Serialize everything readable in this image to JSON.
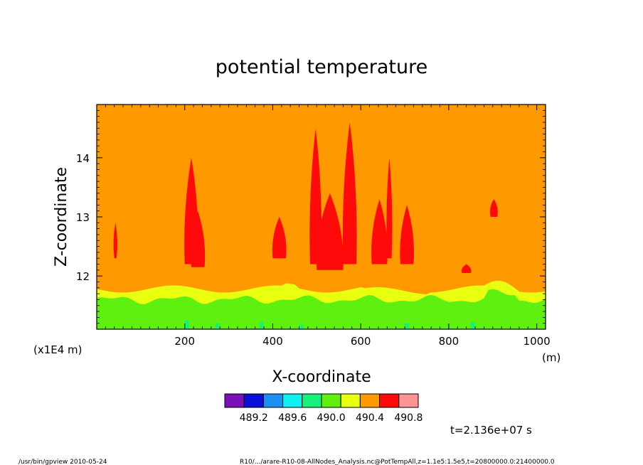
{
  "chart_data": {
    "type": "heatmap",
    "title": "potential temperature",
    "xlabel": "X-coordinate",
    "ylabel": "Z-coordinate",
    "x_unit": "(m)",
    "y_scale_label": "(x1E4 m)",
    "xlim": [
      0,
      1020
    ],
    "ylim": [
      11.1,
      14.9
    ],
    "x_ticks": [
      "200",
      "400",
      "600",
      "800",
      "1000"
    ],
    "y_ticks": [
      "12",
      "13",
      "14"
    ],
    "colorbar": {
      "colors": [
        "#7a10b8",
        "#0a10d8",
        "#1a90f0",
        "#10f0f0",
        "#18f07a",
        "#60f010",
        "#e8ff10",
        "#ff9900",
        "#ff0a0a",
        "#ff9494"
      ],
      "labels": [
        "489.2",
        "489.6",
        "490.0",
        "490.4",
        "490.8"
      ]
    },
    "background_level_color": "#ff9900",
    "time_label": "t=2.136e+07 s",
    "footer_left": "/usr/bin/gpview   2010-05-24",
    "footer_right": "R10/.../arare-R10-08-AllNodes_Analysis.nc@PotTempAll,z=1.1e5:1.5e5,t=20800000.0:21400000.0"
  }
}
